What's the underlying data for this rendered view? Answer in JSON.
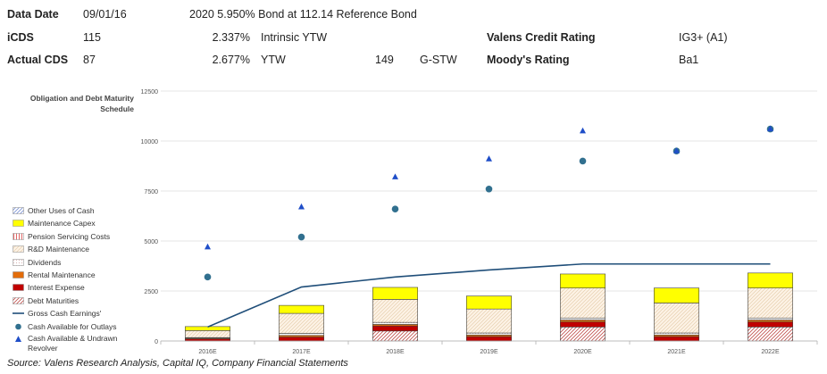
{
  "header": {
    "row1": {
      "label": "Data Date",
      "date": "09/01/16",
      "bond": "2020 5.950% Bond at 112.14 Reference Bond"
    },
    "row2": {
      "label": "iCDS",
      "value": "115",
      "pct": "2.337%",
      "metric": "Intrinsic YTW",
      "rating_label": "Valens Credit Rating",
      "rating": "IG3+ (A1)"
    },
    "row3": {
      "label": "Actual CDS",
      "value": "87",
      "pct": "2.677%",
      "metric": "YTW",
      "spread": "149",
      "spread_label": "G-STW",
      "rating_label": "Moody's Rating",
      "rating": "Ba1"
    }
  },
  "source": "Source: Valens Research Analysis, Capital IQ, Company Financial Statements",
  "chart_data": {
    "type": "bar",
    "title": "Obligation and Debt Maturity Schedule",
    "categories": [
      "2016E",
      "2017E",
      "2018E",
      "2019E",
      "2020E",
      "2021E",
      "2022E"
    ],
    "ylim": [
      0,
      12500
    ],
    "yticks": [
      "0",
      "2500",
      "5000",
      "7500",
      "10000",
      "12500"
    ],
    "grid": true,
    "legend_position": "left",
    "stack_series": [
      {
        "name": "Debt Maturities",
        "color": "#c0504d",
        "pattern": "hatch-red",
        "values": [
          0,
          0,
          500,
          0,
          700,
          0,
          700
        ]
      },
      {
        "name": "Interest Expense",
        "color": "#c00000",
        "values": [
          100,
          200,
          250,
          220,
          250,
          220,
          250
        ]
      },
      {
        "name": "Rental Maintenance",
        "color": "#e36c09",
        "values": [
          40,
          80,
          80,
          80,
          100,
          80,
          100
        ]
      },
      {
        "name": "Dividends",
        "color": "#f2dcdb",
        "pattern": "dots",
        "values": [
          30,
          100,
          100,
          100,
          100,
          100,
          100
        ]
      },
      {
        "name": "R&D Maintenance",
        "color": "#fdeada",
        "pattern": "hatch-tan",
        "values": [
          350,
          1000,
          1150,
          1200,
          1500,
          1500,
          1500
        ]
      },
      {
        "name": "Pension Servicing Costs",
        "color": "#ff9999",
        "pattern": "vlines",
        "values": [
          0,
          0,
          0,
          0,
          0,
          0,
          0
        ]
      },
      {
        "name": "Maintenance Capex",
        "color": "#ffff00",
        "values": [
          200,
          400,
          600,
          650,
          700,
          750,
          750
        ]
      },
      {
        "name": "Other Uses of Cash",
        "color": "#8db3e2",
        "pattern": "hatch-blue",
        "values": [
          0,
          0,
          0,
          0,
          0,
          0,
          0
        ]
      }
    ],
    "line_series": {
      "name": "Gross Cash Earnings'",
      "color": "#1f4e79",
      "values": [
        700,
        2700,
        3200,
        3550,
        3850,
        3850,
        3850
      ]
    },
    "scatter_series": [
      {
        "name": "Cash Available for Outlays",
        "color": "#31708f",
        "marker": "circle",
        "values": [
          3200,
          5200,
          6600,
          7600,
          9000,
          9500,
          10600
        ]
      },
      {
        "name": "Cash Available & Undrawn Revolver",
        "color": "#1f4ec8",
        "marker": "triangle",
        "values": [
          4700,
          6700,
          8200,
          9100,
          10500,
          9500,
          10600
        ]
      }
    ]
  }
}
